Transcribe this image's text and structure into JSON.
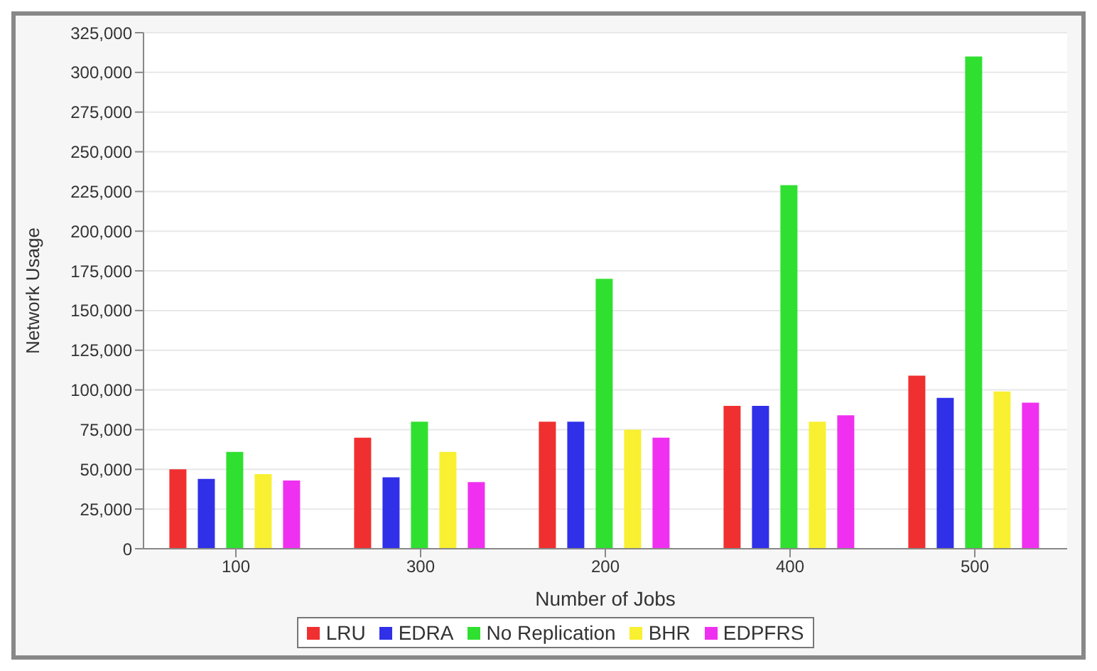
{
  "chart_data": {
    "type": "bar",
    "xlabel": "Number of Jobs",
    "ylabel": "Network Usage",
    "categories": [
      "100",
      "300",
      "200",
      "400",
      "500"
    ],
    "series": [
      {
        "name": "LRU",
        "color": "#f03030",
        "values": [
          50000,
          70000,
          80000,
          90000,
          109000
        ]
      },
      {
        "name": "EDRA",
        "color": "#3030e8",
        "values": [
          44000,
          45000,
          80000,
          90000,
          95000
        ]
      },
      {
        "name": "No Replication",
        "color": "#30e030",
        "values": [
          61000,
          80000,
          170000,
          229000,
          310000
        ]
      },
      {
        "name": "BHR",
        "color": "#f8f030",
        "values": [
          47000,
          61000,
          75000,
          80000,
          99000
        ]
      },
      {
        "name": "EDPFRS",
        "color": "#f030f0",
        "values": [
          43000,
          42000,
          70000,
          84000,
          92000
        ]
      }
    ],
    "ylim": [
      0,
      325000
    ],
    "yticks": [
      0,
      {
        "value": 25000,
        "label": "25,000"
      },
      {
        "value": 50000,
        "label": "50,000"
      },
      {
        "value": 75000,
        "label": "75,000"
      },
      {
        "value": 100000,
        "label": "100,000"
      },
      {
        "value": 125000,
        "label": "125,000"
      },
      {
        "value": 150000,
        "label": "150,000"
      },
      {
        "value": 175000,
        "label": "175,000"
      },
      {
        "value": 200000,
        "label": "200,000"
      },
      {
        "value": 225000,
        "label": "225,000"
      },
      {
        "value": 250000,
        "label": "250,000"
      },
      {
        "value": 275000,
        "label": "275,000"
      },
      {
        "value": 300000,
        "label": "300,000"
      },
      {
        "value": 325000,
        "label": "325,000"
      }
    ],
    "grid": "y",
    "legend": "bottom"
  }
}
